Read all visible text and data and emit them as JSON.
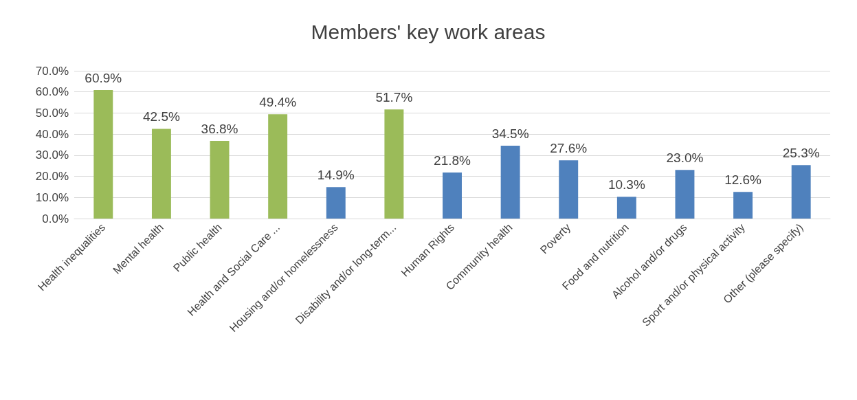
{
  "chart_data": {
    "type": "bar",
    "title": "Members' key work areas",
    "categories": [
      "Health inequalities",
      "Mental health",
      "Public health",
      "Health and Social Care ...",
      "Housing and/or homelessness",
      "Disability and/or long-term...",
      "Human Rights",
      "Community health",
      "Poverty",
      "Food and nutrition",
      "Alcohol and/or drugs",
      "Sport and/or physical activity",
      "Other (please specify)"
    ],
    "values": [
      60.9,
      42.5,
      36.8,
      49.4,
      14.9,
      51.7,
      21.8,
      34.5,
      27.6,
      10.3,
      23.0,
      12.6,
      25.3
    ],
    "value_labels": [
      "60.9%",
      "42.5%",
      "36.8%",
      "49.4%",
      "14.9%",
      "51.7%",
      "21.8%",
      "34.5%",
      "27.6%",
      "10.3%",
      "23.0%",
      "12.6%",
      "25.3%"
    ],
    "colors": [
      "#9bbb59",
      "#9bbb59",
      "#9bbb59",
      "#9bbb59",
      "#4f81bd",
      "#9bbb59",
      "#4f81bd",
      "#4f81bd",
      "#4f81bd",
      "#4f81bd",
      "#4f81bd",
      "#4f81bd",
      "#4f81bd"
    ],
    "ylim": [
      0,
      70
    ],
    "yticks": [
      {
        "value": 0,
        "label": "0.0%"
      },
      {
        "value": 10,
        "label": "10.0%"
      },
      {
        "value": 20,
        "label": "20.0%"
      },
      {
        "value": 30,
        "label": "30.0%"
      },
      {
        "value": 40,
        "label": "40.0%"
      },
      {
        "value": 50,
        "label": "50.0%"
      },
      {
        "value": 60,
        "label": "60.0%"
      },
      {
        "value": 70,
        "label": "70.0%"
      }
    ],
    "grid": "y"
  }
}
